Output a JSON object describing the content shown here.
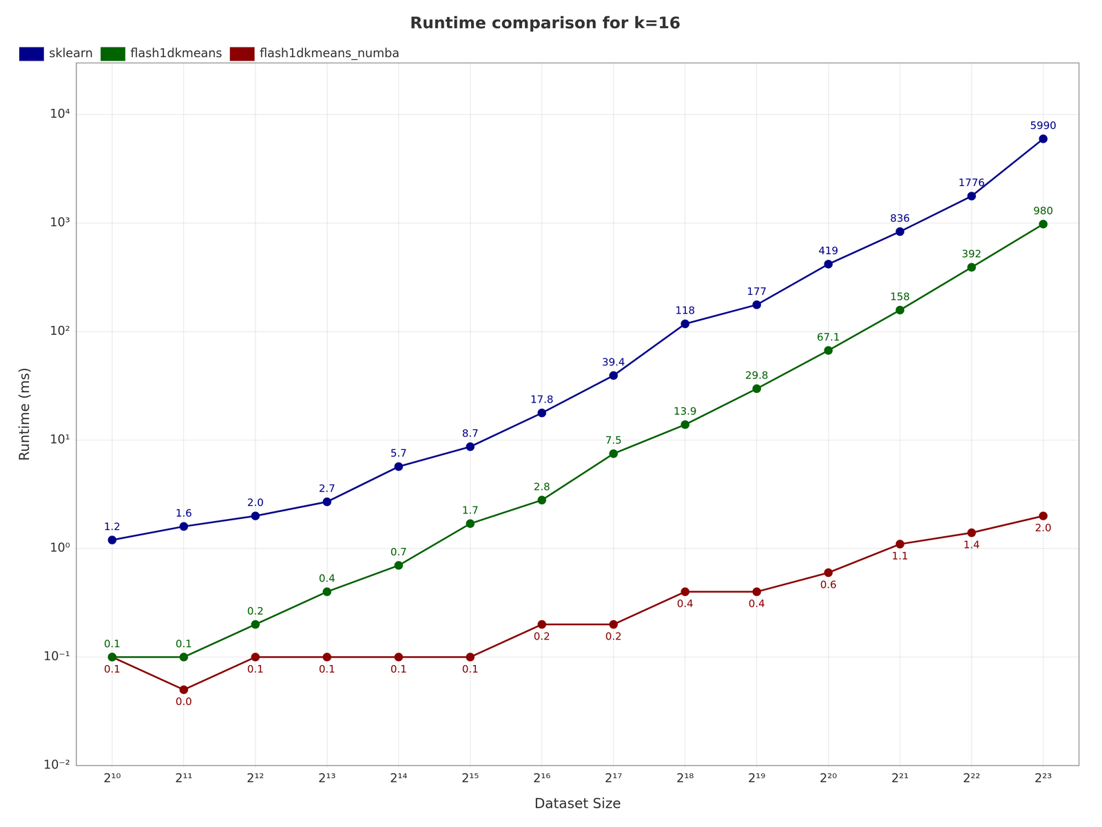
{
  "chart_data": {
    "type": "line",
    "title": "Runtime comparison for k=16",
    "xlabel": "Dataset Size",
    "ylabel": "Runtime (ms)",
    "categories": [
      "2¹⁰",
      "2¹¹",
      "2¹²",
      "2¹³",
      "2¹⁴",
      "2¹⁵",
      "2¹⁶",
      "2¹⁷",
      "2¹⁸",
      "2¹⁹",
      "2²⁰",
      "2²¹",
      "2²²",
      "2²³"
    ],
    "series": [
      {
        "name": "sklearn",
        "color": "#00008B",
        "marker": "circle",
        "values": [
          1.2,
          1.6,
          2.0,
          2.7,
          5.7,
          8.7,
          17.8,
          39.4,
          118,
          177,
          419,
          836,
          1776,
          5990
        ],
        "value_labels": [
          "1.2",
          "1.6",
          "2.0",
          "2.7",
          "5.7",
          "8.7",
          "17.8",
          "39.4",
          "118",
          "177",
          "419",
          "836",
          "1776",
          "5990"
        ]
      },
      {
        "name": "flash1dkmeans",
        "color": "#006400",
        "marker": "circle",
        "values": [
          0.1,
          0.1,
          0.2,
          0.4,
          0.7,
          1.7,
          2.8,
          7.5,
          13.9,
          29.8,
          67.1,
          158,
          392,
          980
        ],
        "value_labels": [
          "0.1",
          "0.1",
          "0.2",
          "0.4",
          "0.7",
          "1.7",
          "2.8",
          "7.5",
          "13.9",
          "29.8",
          "67.1",
          "158",
          "392",
          "980"
        ]
      },
      {
        "name": "flash1dkmeans_numba",
        "color": "#8B0000",
        "marker": "circle",
        "values": [
          0.1,
          0.05,
          0.1,
          0.1,
          0.1,
          0.1,
          0.2,
          0.2,
          0.4,
          0.4,
          0.6,
          1.1,
          1.4,
          2.0
        ],
        "value_labels": [
          "0.1",
          "0.0",
          "0.1",
          "0.1",
          "0.1",
          "0.1",
          "0.2",
          "0.2",
          "0.4",
          "0.4",
          "0.6",
          "1.1",
          "1.4",
          "2.0"
        ]
      }
    ],
    "log": "y",
    "ylim": [
      0.01,
      30000
    ],
    "yticks": [
      {
        "value": 0.01,
        "label": "10⁻²"
      },
      {
        "value": 0.1,
        "label": "10⁻¹"
      },
      {
        "value": 1,
        "label": "10⁰"
      },
      {
        "value": 10,
        "label": "10¹"
      },
      {
        "value": 100,
        "label": "10²"
      },
      {
        "value": 1000,
        "label": "10³"
      },
      {
        "value": 10000,
        "label": "10⁴"
      }
    ],
    "grid": true,
    "legend": "upper left",
    "data_labels": true
  }
}
